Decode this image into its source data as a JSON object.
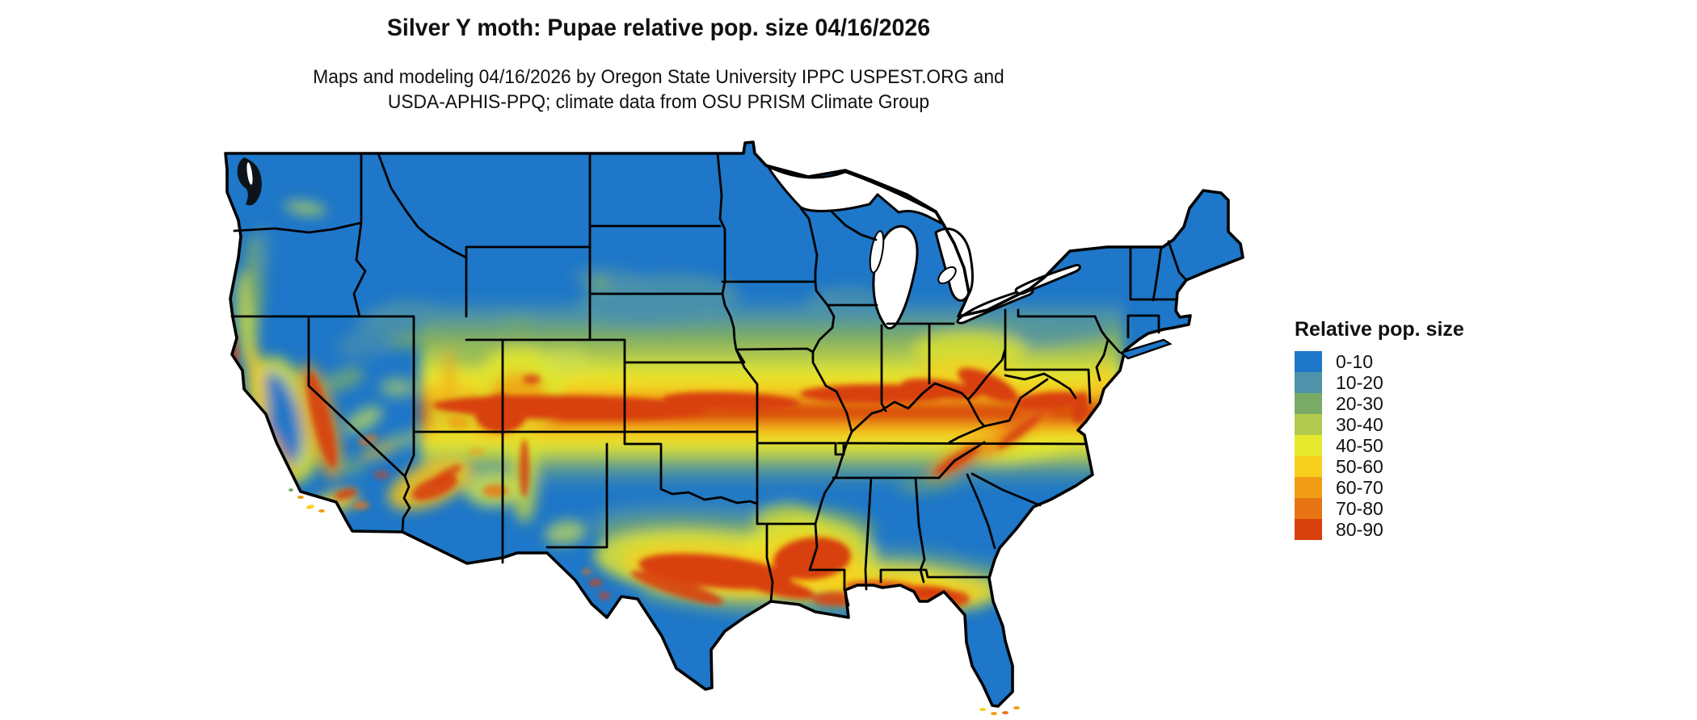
{
  "header": {
    "title": "Silver Y moth: Pupae relative pop. size 04/16/2026",
    "subtitle_line1": "Maps and modeling 04/16/2026 by Oregon State University IPPC USPEST.ORG and",
    "subtitle_line2": "USDA-APHIS-PPQ; climate data from OSU PRISM Climate Group"
  },
  "legend": {
    "title": "Relative pop. size",
    "items": [
      {
        "label": "0-10",
        "color": "#1e77c8"
      },
      {
        "label": "10-20",
        "color": "#4e93a9"
      },
      {
        "label": "20-30",
        "color": "#7aab66"
      },
      {
        "label": "30-40",
        "color": "#b1ca4d"
      },
      {
        "label": "40-50",
        "color": "#e5e82d"
      },
      {
        "label": "50-60",
        "color": "#f7cf1f"
      },
      {
        "label": "60-70",
        "color": "#f09c15"
      },
      {
        "label": "70-80",
        "color": "#e87514"
      },
      {
        "label": "80-90",
        "color": "#d8400e"
      }
    ]
  },
  "map": {
    "base_fill": "#1e77c8",
    "border_color": "#000000",
    "background": "#ffffff"
  },
  "chart_data": {
    "type": "heatmap",
    "title": "Silver Y moth: Pupae relative pop. size 04/16/2026",
    "legend_title": "Relative pop. size",
    "bins": [
      "0-10",
      "10-20",
      "20-30",
      "30-40",
      "40-50",
      "50-60",
      "60-70",
      "70-80",
      "80-90"
    ],
    "bin_colors": [
      "#1e77c8",
      "#4e93a9",
      "#7aab66",
      "#b1ca4d",
      "#e5e82d",
      "#f7cf1f",
      "#f09c15",
      "#e87514",
      "#d8400e"
    ],
    "legend_position": "right"
  }
}
